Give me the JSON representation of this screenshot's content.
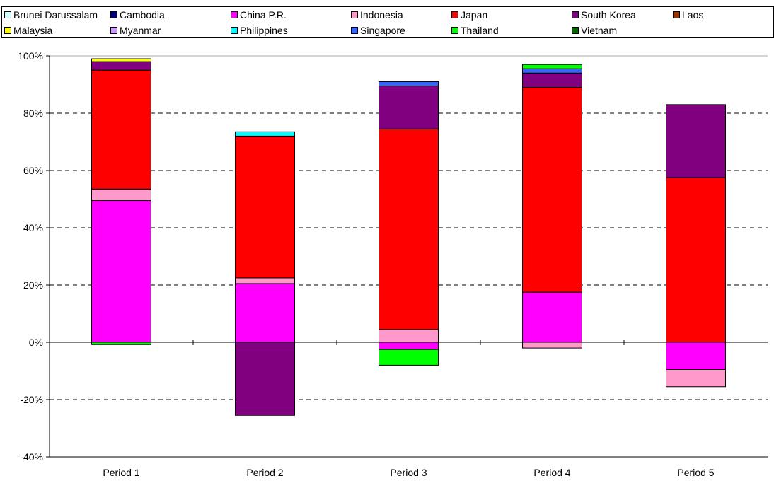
{
  "chart_data": {
    "type": "bar",
    "stacked": true,
    "categories": [
      "Period 1",
      "Period 2",
      "Period 3",
      "Period 4",
      "Period 5"
    ],
    "ylim": [
      -40,
      100
    ],
    "yticks": [
      -40,
      -20,
      0,
      20,
      40,
      60,
      80,
      100
    ],
    "ytick_labels": [
      "-40%",
      "-20%",
      "0%",
      "20%",
      "40%",
      "60%",
      "80%",
      "100%"
    ],
    "grid": "dashed-horizontal",
    "legend_position": "top",
    "series": [
      {
        "name": "Brunei Darussalam",
        "color": "#ccffff",
        "values": [
          0,
          0,
          0,
          0,
          0
        ]
      },
      {
        "name": "Cambodia",
        "color": "#000080",
        "values": [
          0,
          0,
          0,
          0,
          0
        ]
      },
      {
        "name": "China P.R.",
        "color": "#ff00ff",
        "values": [
          49.5,
          20.5,
          -2.5,
          17.5,
          -9.5
        ]
      },
      {
        "name": "Indonesia",
        "color": "#ff99cc",
        "values": [
          4,
          2,
          4.5,
          -2,
          -6
        ]
      },
      {
        "name": "Japan",
        "color": "#ff0000",
        "values": [
          41.5,
          49.5,
          70,
          71.5,
          57.5
        ]
      },
      {
        "name": "South Korea",
        "color": "#800080",
        "values": [
          3,
          -25.5,
          15,
          5,
          25.5
        ]
      },
      {
        "name": "Laos",
        "color": "#993300",
        "values": [
          0,
          0,
          0,
          0,
          0
        ]
      },
      {
        "name": "Malaysia",
        "color": "#ffff00",
        "values": [
          1,
          0,
          0,
          0,
          0
        ]
      },
      {
        "name": "Myanmar",
        "color": "#cc99ff",
        "values": [
          0,
          0,
          0,
          0,
          0
        ]
      },
      {
        "name": "Philippines",
        "color": "#00ffff",
        "values": [
          0,
          1.5,
          0,
          0,
          0
        ]
      },
      {
        "name": "Singapore",
        "color": "#3366ff",
        "values": [
          0,
          0,
          1.5,
          1.5,
          0
        ]
      },
      {
        "name": "Thailand",
        "color": "#00ff00",
        "values": [
          -0.8,
          0,
          -5.5,
          1.5,
          0
        ]
      },
      {
        "name": "Vietnam",
        "color": "#006600",
        "values": [
          0,
          0,
          0,
          0,
          0
        ]
      }
    ]
  }
}
